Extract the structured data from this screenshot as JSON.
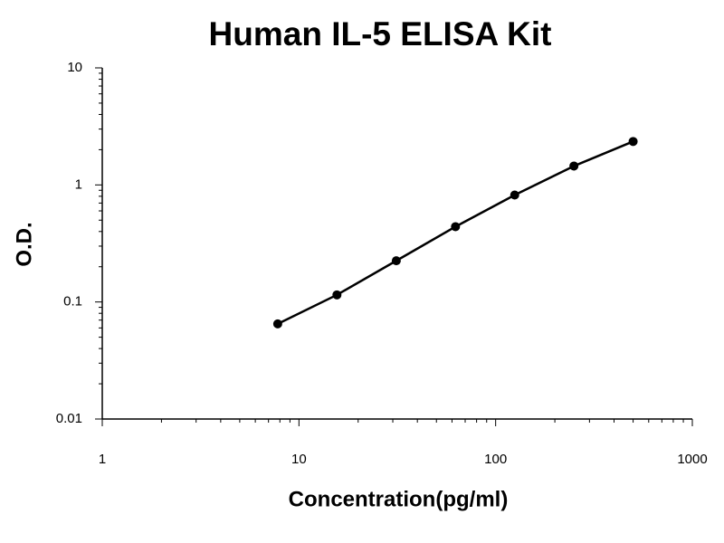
{
  "chart_data": {
    "type": "line",
    "title": "Human IL-5 ELISA Kit",
    "x_label": "Concentration(pg/ml)",
    "y_label": "O.D.",
    "x": [
      7.8,
      15.6,
      31.25,
      62.5,
      125,
      250,
      500
    ],
    "series": [
      {
        "name": "IL-5",
        "color": "#000000",
        "values": [
          0.065,
          0.115,
          0.225,
          0.44,
          0.82,
          1.45,
          2.35
        ]
      }
    ],
    "xlim": [
      1,
      1000
    ],
    "xticks": [
      1,
      10,
      100,
      1000
    ],
    "ylim": [
      0.01,
      10
    ],
    "yticks": [
      0.01,
      0.1,
      1,
      10
    ],
    "xscale": "log",
    "yscale": "log",
    "grid": false
  }
}
